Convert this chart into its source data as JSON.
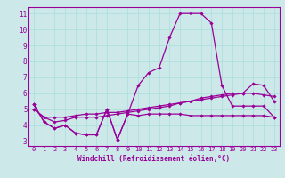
{
  "xlabel": "Windchill (Refroidissement éolien,°C)",
  "ylabel": "",
  "bg_color": "#cce8e8",
  "line_color": "#990099",
  "grid_color": "#aadddd",
  "xlim": [
    -0.5,
    23.5
  ],
  "ylim": [
    2.7,
    11.4
  ],
  "yticks": [
    3,
    4,
    5,
    6,
    7,
    8,
    9,
    10,
    11
  ],
  "xticks": [
    0,
    1,
    2,
    3,
    4,
    5,
    6,
    7,
    8,
    9,
    10,
    11,
    12,
    13,
    14,
    15,
    16,
    17,
    18,
    19,
    20,
    21,
    22,
    23
  ],
  "lines": [
    [
      5.3,
      4.2,
      3.8,
      4.0,
      3.5,
      3.4,
      3.4,
      5.0,
      3.1,
      4.7,
      4.6,
      4.7,
      4.7,
      4.7,
      4.7,
      4.6,
      4.6,
      4.6,
      4.6,
      4.6,
      4.6,
      4.6,
      4.6,
      4.5
    ],
    [
      5.3,
      4.2,
      3.8,
      4.0,
      3.5,
      3.4,
      3.4,
      5.0,
      3.1,
      4.7,
      6.5,
      7.3,
      7.6,
      9.5,
      11.0,
      11.0,
      11.0,
      10.4,
      6.5,
      5.2,
      5.2,
      5.2,
      5.2,
      4.5
    ],
    [
      5.0,
      4.5,
      4.2,
      4.3,
      4.5,
      4.5,
      4.5,
      4.6,
      4.7,
      4.8,
      4.9,
      5.0,
      5.1,
      5.2,
      5.4,
      5.5,
      5.7,
      5.8,
      5.9,
      6.0,
      6.0,
      6.0,
      5.9,
      5.8
    ],
    [
      5.0,
      4.5,
      4.5,
      4.5,
      4.6,
      4.7,
      4.7,
      4.8,
      4.8,
      4.9,
      5.0,
      5.1,
      5.2,
      5.3,
      5.4,
      5.5,
      5.6,
      5.7,
      5.8,
      5.9,
      6.0,
      6.6,
      6.5,
      5.5
    ]
  ],
  "marker": "D",
  "markersize": 1.8,
  "linewidth": 0.9,
  "tick_fontsize": 5.0,
  "xlabel_fontsize": 5.5
}
